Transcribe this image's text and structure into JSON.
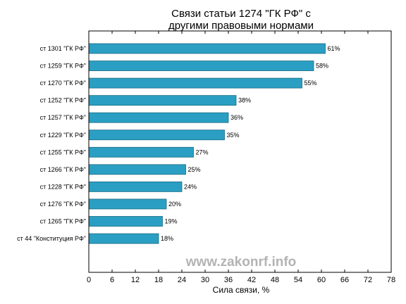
{
  "chart_data": {
    "type": "bar",
    "orientation": "horizontal",
    "title_lines": [
      "Связи статьи 1274 \"ГК РФ\" с",
      "другими правовыми нормами"
    ],
    "xlabel": "Сила связи, %",
    "ylabel": "",
    "xlim": [
      0,
      78
    ],
    "xticks": [
      0,
      6,
      12,
      18,
      24,
      30,
      36,
      42,
      48,
      54,
      60,
      66,
      72,
      78
    ],
    "categories": [
      "ст 1301 \"ГК РФ\"",
      "ст 1259 \"ГК РФ\"",
      "ст 1270 \"ГК РФ\"",
      "ст 1252 \"ГК РФ\"",
      "ст 1257 \"ГК РФ\"",
      "ст 1229 \"ГК РФ\"",
      "ст 1255 \"ГК РФ\"",
      "ст 1266 \"ГК РФ\"",
      "ст 1228 \"ГК РФ\"",
      "ст 1276 \"ГК РФ\"",
      "ст 1265 \"ГК РФ\"",
      "ст 44 \"Конституция РФ\""
    ],
    "values": [
      61,
      58,
      55,
      38,
      36,
      35,
      27,
      25,
      24,
      20,
      19,
      18
    ],
    "data_labels": [
      "61%",
      "58%",
      "55%",
      "38%",
      "36%",
      "35%",
      "27%",
      "25%",
      "24%",
      "20%",
      "19%",
      "18%"
    ],
    "bar_color": "#2a9fc3",
    "bar_edge_color": "#1a6a82",
    "grid": false,
    "legend": "none",
    "watermark": "www.zakonrf.info"
  }
}
